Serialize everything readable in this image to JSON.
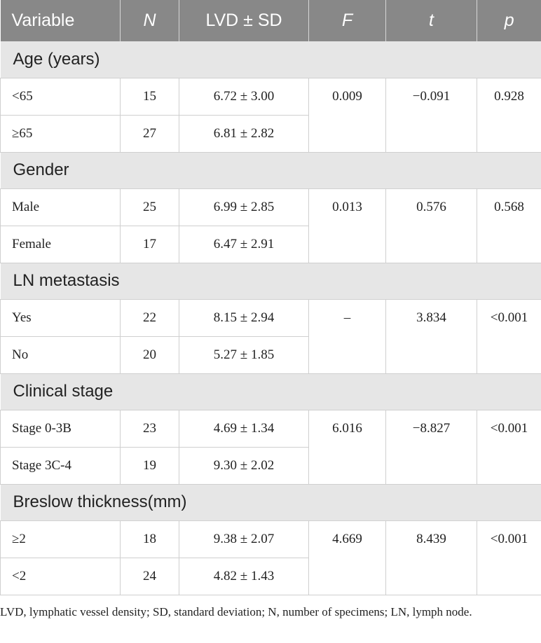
{
  "headers": [
    "Variable",
    "N",
    "LVD ± SD",
    "F",
    "t",
    "p"
  ],
  "groups": [
    {
      "title": "Age (years)",
      "rows": [
        {
          "label": "<65",
          "n": "15",
          "lvd": "6.72 ± 3.00"
        },
        {
          "label": "≥65",
          "n": "27",
          "lvd": "6.81 ± 2.82"
        }
      ],
      "f": "0.009",
      "t": "−0.091",
      "p": "0.928"
    },
    {
      "title": "Gender",
      "rows": [
        {
          "label": "Male",
          "n": "25",
          "lvd": "6.99 ± 2.85"
        },
        {
          "label": "Female",
          "n": "17",
          "lvd": "6.47 ± 2.91"
        }
      ],
      "f": "0.013",
      "t": "0.576",
      "p": "0.568"
    },
    {
      "title": "LN metastasis",
      "rows": [
        {
          "label": "Yes",
          "n": "22",
          "lvd": "8.15 ± 2.94"
        },
        {
          "label": "No",
          "n": "20",
          "lvd": "5.27 ± 1.85"
        }
      ],
      "f": "–",
      "t": "3.834",
      "p": "<0.001"
    },
    {
      "title": "Clinical stage",
      "rows": [
        {
          "label": "Stage 0-3B",
          "n": "23",
          "lvd": "4.69 ± 1.34"
        },
        {
          "label": "Stage 3C-4",
          "n": "19",
          "lvd": "9.30 ± 2.02"
        }
      ],
      "f": "6.016",
      "t": "−8.827",
      "p": "<0.001"
    },
    {
      "title": "Breslow thickness(mm)",
      "rows": [
        {
          "label": "≥2",
          "n": "18",
          "lvd": "9.38 ± 2.07"
        },
        {
          "label": "<2",
          "n": "24",
          "lvd": "4.82 ± 1.43"
        }
      ],
      "f": "4.669",
      "t": "8.439",
      "p": "<0.001"
    }
  ],
  "footnote": "LVD, lymphatic vessel density; SD, standard deviation; N, number of specimens; LN, lymph node."
}
